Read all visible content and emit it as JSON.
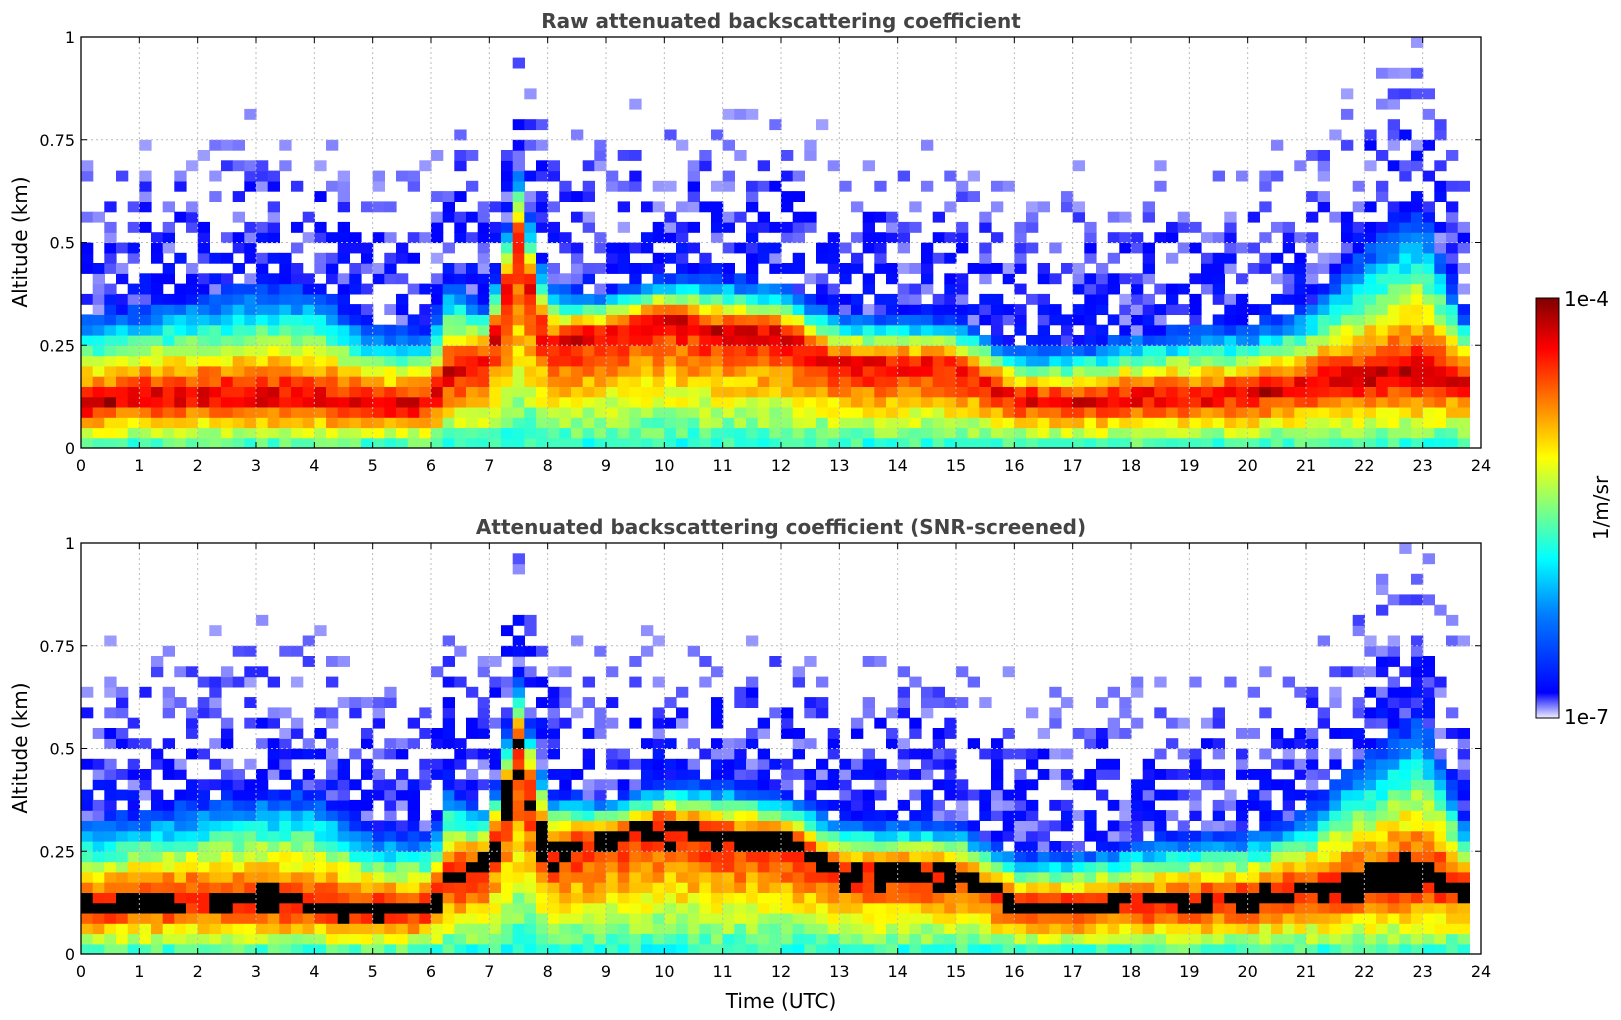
{
  "chart_data": [
    {
      "type": "heatmap",
      "title": "Raw attenuated backscattering coefficient",
      "xlabel": "",
      "ylabel": "Altitude (km)",
      "xlim": [
        0,
        24
      ],
      "ylim": [
        0,
        1
      ],
      "xticks": [
        "0",
        "1",
        "2",
        "3",
        "4",
        "5",
        "6",
        "7",
        "8",
        "9",
        "10",
        "11",
        "12",
        "13",
        "14",
        "15",
        "16",
        "17",
        "18",
        "19",
        "20",
        "21",
        "22",
        "23",
        "24"
      ],
      "yticks": [
        "0",
        "0.25",
        "0.5",
        "0.75",
        "1"
      ],
      "grid": true,
      "colorscale": "jet (log scale)",
      "layer_profile": {
        "time_utc": [
          0,
          1,
          2,
          3,
          4,
          5,
          6,
          6.3,
          7,
          7.5,
          8,
          9,
          10,
          11,
          12,
          13,
          14,
          15,
          16,
          17,
          18,
          19,
          20,
          21,
          22,
          23,
          23.8
        ],
        "dense_layer_alt_km": [
          0.1,
          0.12,
          0.12,
          0.12,
          0.11,
          0.1,
          0.1,
          0.18,
          0.22,
          0.5,
          0.25,
          0.28,
          0.32,
          0.28,
          0.28,
          0.2,
          0.2,
          0.2,
          0.12,
          0.11,
          0.12,
          0.12,
          0.13,
          0.15,
          0.16,
          0.18,
          0.16
        ],
        "aerosol_top_alt_km": [
          0.33,
          0.35,
          0.38,
          0.4,
          0.4,
          0.3,
          0.3,
          0.42,
          0.35,
          0.68,
          0.4,
          0.38,
          0.42,
          0.42,
          0.4,
          0.33,
          0.33,
          0.32,
          0.25,
          0.25,
          0.28,
          0.3,
          0.3,
          0.35,
          0.5,
          0.6,
          0.3
        ]
      }
    },
    {
      "type": "heatmap",
      "title": "Attenuated backscattering coefficient (SNR-screened)",
      "xlabel": "Time (UTC)",
      "ylabel": "Altitude (km)",
      "xlim": [
        0,
        24
      ],
      "ylim": [
        0,
        1
      ],
      "xticks": [
        "0",
        "1",
        "2",
        "3",
        "4",
        "5",
        "6",
        "7",
        "8",
        "9",
        "10",
        "11",
        "12",
        "13",
        "14",
        "15",
        "16",
        "17",
        "18",
        "19",
        "20",
        "21",
        "22",
        "23",
        "24"
      ],
      "yticks": [
        "0",
        "0.25",
        "0.5",
        "0.75",
        "1"
      ],
      "grid": true,
      "colorscale": "jet (log scale), saturated values in black",
      "layer_profile": {
        "time_utc": [
          0,
          1,
          2,
          3,
          4,
          5,
          6,
          6.3,
          7,
          7.5,
          8,
          9,
          10,
          11,
          12,
          13,
          14,
          15,
          16,
          17,
          18,
          19,
          20,
          21,
          22,
          23,
          23.8
        ],
        "dense_layer_alt_km": [
          0.1,
          0.12,
          0.12,
          0.12,
          0.11,
          0.1,
          0.1,
          0.18,
          0.22,
          0.5,
          0.25,
          0.28,
          0.32,
          0.28,
          0.28,
          0.2,
          0.2,
          0.2,
          0.12,
          0.11,
          0.12,
          0.12,
          0.13,
          0.15,
          0.16,
          0.18,
          0.16
        ],
        "aerosol_top_alt_km": [
          0.33,
          0.35,
          0.38,
          0.4,
          0.4,
          0.3,
          0.3,
          0.42,
          0.35,
          0.68,
          0.4,
          0.38,
          0.42,
          0.42,
          0.4,
          0.33,
          0.33,
          0.32,
          0.25,
          0.25,
          0.28,
          0.3,
          0.3,
          0.35,
          0.5,
          0.6,
          0.3
        ]
      }
    }
  ],
  "colorbar": {
    "label": "1/m/sr",
    "max_label": "1e-4",
    "min_label": "1e-7",
    "colors": [
      "#eeeeff",
      "#0000ff",
      "#0080ff",
      "#00ffff",
      "#80ff80",
      "#ffff00",
      "#ff8000",
      "#ff0000",
      "#800000"
    ]
  }
}
